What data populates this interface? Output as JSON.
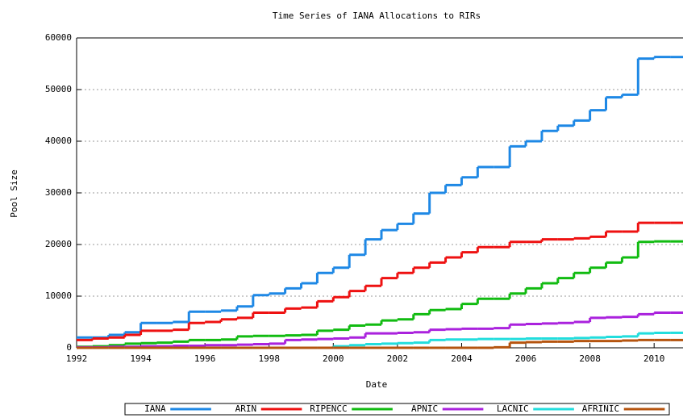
{
  "chart_data": {
    "type": "line",
    "step": "post",
    "title": "Time Series of IANA Allocations to RIRs",
    "xlabel": "Date",
    "ylabel": "Pool Size",
    "xlim": [
      1992,
      2010.9
    ],
    "xticks": [
      1992,
      1994,
      1996,
      1998,
      2000,
      2002,
      2004,
      2006,
      2008,
      2010
    ],
    "ylim": [
      0,
      60000
    ],
    "yticks": [
      0,
      10000,
      20000,
      30000,
      40000,
      50000,
      60000
    ],
    "grid": true,
    "legend": "bottom",
    "x": [
      1992,
      1992.5,
      1993,
      1993.5,
      1994,
      1994.5,
      1995,
      1995.5,
      1996,
      1996.5,
      1997,
      1997.5,
      1998,
      1998.5,
      1999,
      1999.5,
      2000,
      2000.5,
      2001,
      2001.5,
      2002,
      2002.5,
      2003,
      2003.5,
      2004,
      2004.5,
      2005,
      2005.5,
      2006,
      2006.5,
      2007,
      2007.5,
      2008,
      2008.5,
      2009,
      2009.5,
      2010,
      2010.5,
      2010.9
    ],
    "series": [
      {
        "name": "IANA",
        "color": "#1e88e5",
        "values": [
          2000,
          2000,
          2500,
          3000,
          4800,
          4800,
          5000,
          7000,
          7000,
          7200,
          8000,
          10200,
          10500,
          11500,
          12500,
          14500,
          15500,
          18000,
          21000,
          22800,
          24000,
          26000,
          30000,
          31500,
          33000,
          35000,
          35000,
          39000,
          40000,
          42000,
          43000,
          44000,
          46000,
          48500,
          49000,
          56000,
          56300,
          56300,
          56300
        ]
      },
      {
        "name": "ARIN",
        "color": "#ee1111",
        "values": [
          1500,
          1800,
          2000,
          2500,
          3300,
          3300,
          3500,
          4800,
          5000,
          5500,
          5800,
          6800,
          6800,
          7600,
          7800,
          9000,
          9800,
          11000,
          12000,
          13500,
          14500,
          15500,
          16500,
          17500,
          18500,
          19500,
          19500,
          20500,
          20500,
          21000,
          21000,
          21200,
          21500,
          22500,
          22500,
          24200,
          24200,
          24200,
          24200
        ]
      },
      {
        "name": "RIPENCC",
        "color": "#11bb11",
        "values": [
          200,
          300,
          500,
          800,
          900,
          1000,
          1200,
          1500,
          1500,
          1600,
          2200,
          2300,
          2300,
          2400,
          2500,
          3300,
          3500,
          4300,
          4500,
          5300,
          5500,
          6500,
          7300,
          7500,
          8500,
          9500,
          9500,
          10500,
          11500,
          12500,
          13500,
          14500,
          15500,
          16500,
          17500,
          20500,
          20600,
          20600,
          20600
        ]
      },
      {
        "name": "APNIC",
        "color": "#aa22dd",
        "values": [
          100,
          100,
          200,
          200,
          300,
          300,
          400,
          400,
          500,
          500,
          600,
          700,
          800,
          1500,
          1600,
          1700,
          1800,
          2000,
          2800,
          2800,
          2900,
          3000,
          3500,
          3600,
          3700,
          3700,
          3800,
          4500,
          4600,
          4700,
          4800,
          5000,
          5800,
          5900,
          6000,
          6500,
          6800,
          6800,
          6800
        ]
      },
      {
        "name": "LACNIC",
        "color": "#22dddd",
        "values": [
          0,
          0,
          0,
          0,
          0,
          0,
          0,
          0,
          0,
          0,
          0,
          0,
          0,
          0,
          0,
          0,
          300,
          500,
          700,
          800,
          900,
          1000,
          1500,
          1600,
          1600,
          1700,
          1700,
          1700,
          1800,
          1800,
          1800,
          1900,
          2000,
          2100,
          2200,
          2800,
          2900,
          2900,
          2900
        ]
      },
      {
        "name": "AFRINIC",
        "color": "#b5540f",
        "values": [
          0,
          0,
          0,
          0,
          0,
          0,
          0,
          0,
          0,
          0,
          0,
          0,
          0,
          0,
          0,
          0,
          0,
          0,
          0,
          0,
          0,
          0,
          0,
          0,
          0,
          0,
          100,
          1000,
          1100,
          1200,
          1200,
          1300,
          1300,
          1300,
          1400,
          1500,
          1500,
          1500,
          1500
        ]
      }
    ]
  }
}
